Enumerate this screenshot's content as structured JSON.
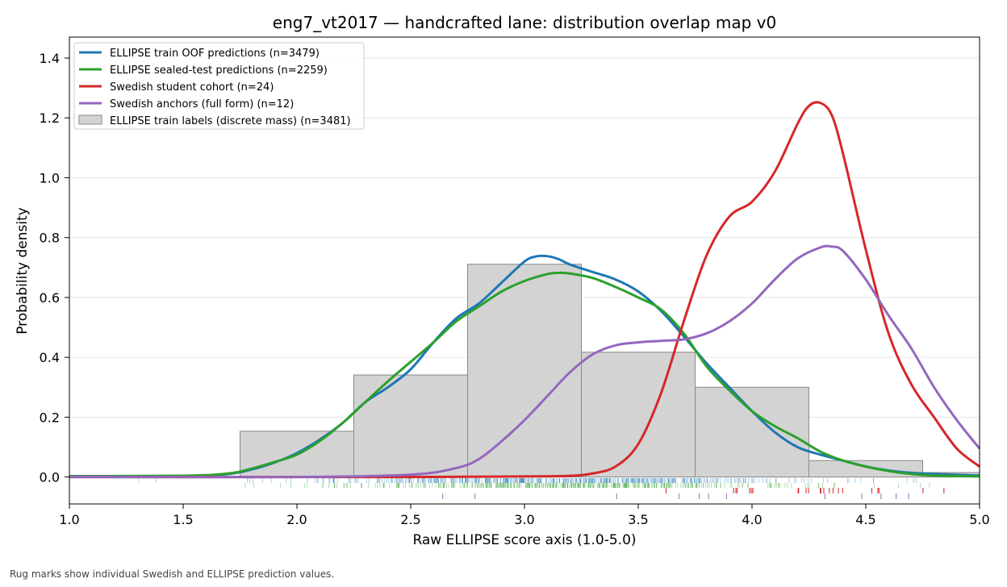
{
  "chart_data": {
    "type": "area",
    "title": "eng7_vt2017 — handcrafted lane: distribution overlap map v0",
    "xlabel": "Raw ELLIPSE score axis (1.0-5.0)",
    "ylabel": "Probability density",
    "xlim": [
      1.0,
      5.0
    ],
    "ylim": [
      -0.09,
      1.47
    ],
    "xticks": [
      1.0,
      1.5,
      2.0,
      2.5,
      3.0,
      3.5,
      4.0,
      4.5,
      5.0
    ],
    "xtick_labels": [
      "1.0",
      "1.5",
      "2.0",
      "2.5",
      "3.0",
      "3.5",
      "4.0",
      "4.5",
      "5.0"
    ],
    "yticks": [
      0.0,
      0.2,
      0.4,
      0.6,
      0.8,
      1.0,
      1.2,
      1.4
    ],
    "ytick_labels": [
      "0.0",
      "0.2",
      "0.4",
      "0.6",
      "0.8",
      "1.0",
      "1.2",
      "1.4"
    ],
    "grid": "horizontal",
    "legend_position": "top-left",
    "histogram": {
      "name": "ELLIPSE train labels (discrete mass) (n=3481)",
      "color": "#d3d3d3",
      "bins": [
        {
          "x0": 1.75,
          "x1": 2.25,
          "value": 0.153
        },
        {
          "x0": 2.25,
          "x1": 2.75,
          "value": 0.341
        },
        {
          "x0": 2.75,
          "x1": 3.25,
          "value": 0.711
        },
        {
          "x0": 3.25,
          "x1": 3.75,
          "value": 0.417
        },
        {
          "x0": 3.75,
          "x1": 4.25,
          "value": 0.3
        },
        {
          "x0": 4.25,
          "x1": 4.75,
          "value": 0.055
        },
        {
          "x0": 4.75,
          "x1": 5.25,
          "value": 0.015
        }
      ]
    },
    "series": [
      {
        "name": "ELLIPSE train OOF predictions (n=3479)",
        "color": "#1f77b4",
        "x": [
          1.0,
          1.5,
          1.7,
          1.8,
          1.9,
          2.0,
          2.1,
          2.2,
          2.3,
          2.4,
          2.5,
          2.6,
          2.7,
          2.8,
          2.9,
          3.0,
          3.05,
          3.1,
          3.15,
          3.2,
          3.3,
          3.4,
          3.5,
          3.6,
          3.7,
          3.8,
          3.9,
          4.0,
          4.1,
          4.2,
          4.3,
          4.4,
          4.5,
          4.6,
          4.7,
          4.8,
          5.0
        ],
        "y": [
          0.003,
          0.004,
          0.01,
          0.025,
          0.048,
          0.08,
          0.125,
          0.18,
          0.25,
          0.3,
          0.36,
          0.45,
          0.53,
          0.58,
          0.65,
          0.72,
          0.737,
          0.738,
          0.728,
          0.71,
          0.685,
          0.66,
          0.62,
          0.555,
          0.47,
          0.38,
          0.3,
          0.22,
          0.15,
          0.1,
          0.075,
          0.055,
          0.035,
          0.022,
          0.014,
          0.01,
          0.005
        ]
      },
      {
        "name": "ELLIPSE sealed-test predictions (n=2259)",
        "color": "#2ca02c",
        "x": [
          1.0,
          1.5,
          1.7,
          1.8,
          1.9,
          2.0,
          2.1,
          2.2,
          2.3,
          2.4,
          2.5,
          2.6,
          2.7,
          2.8,
          2.9,
          3.0,
          3.1,
          3.15,
          3.2,
          3.3,
          3.4,
          3.5,
          3.6,
          3.7,
          3.8,
          3.9,
          4.0,
          4.1,
          4.2,
          4.3,
          4.4,
          4.5,
          4.6,
          4.7,
          4.8,
          5.0
        ],
        "y": [
          0.002,
          0.004,
          0.012,
          0.028,
          0.05,
          0.075,
          0.12,
          0.18,
          0.25,
          0.32,
          0.385,
          0.45,
          0.52,
          0.57,
          0.62,
          0.655,
          0.678,
          0.682,
          0.68,
          0.665,
          0.635,
          0.6,
          0.56,
          0.48,
          0.37,
          0.29,
          0.22,
          0.17,
          0.13,
          0.085,
          0.055,
          0.035,
          0.02,
          0.01,
          0.005,
          0.002
        ]
      },
      {
        "name": "Swedish student cohort (n=24)",
        "color": "#d62728",
        "x": [
          1.0,
          2.5,
          3.0,
          3.2,
          3.3,
          3.4,
          3.5,
          3.6,
          3.7,
          3.8,
          3.9,
          4.0,
          4.1,
          4.2,
          4.25,
          4.3,
          4.35,
          4.4,
          4.5,
          4.6,
          4.7,
          4.8,
          4.9,
          5.0
        ],
        "y": [
          0.0,
          0.0,
          0.002,
          0.004,
          0.012,
          0.035,
          0.11,
          0.28,
          0.52,
          0.74,
          0.87,
          0.92,
          1.02,
          1.18,
          1.24,
          1.25,
          1.21,
          1.08,
          0.76,
          0.48,
          0.31,
          0.2,
          0.095,
          0.035
        ]
      },
      {
        "name": "Swedish anchors (full form) (n=12)",
        "color": "#9467bd",
        "x": [
          1.0,
          2.0,
          2.5,
          2.7,
          2.8,
          2.9,
          3.0,
          3.1,
          3.2,
          3.3,
          3.4,
          3.5,
          3.6,
          3.7,
          3.8,
          3.9,
          4.0,
          4.1,
          4.2,
          4.3,
          4.35,
          4.4,
          4.5,
          4.6,
          4.7,
          4.8,
          4.9,
          5.0
        ],
        "y": [
          0.0,
          0.0,
          0.008,
          0.03,
          0.06,
          0.12,
          0.19,
          0.27,
          0.35,
          0.41,
          0.44,
          0.45,
          0.455,
          0.46,
          0.48,
          0.52,
          0.58,
          0.66,
          0.73,
          0.767,
          0.77,
          0.755,
          0.66,
          0.54,
          0.43,
          0.3,
          0.19,
          0.095
        ]
      }
    ]
  },
  "caption": "Rug marks show individual Swedish and ELLIPSE prediction values."
}
